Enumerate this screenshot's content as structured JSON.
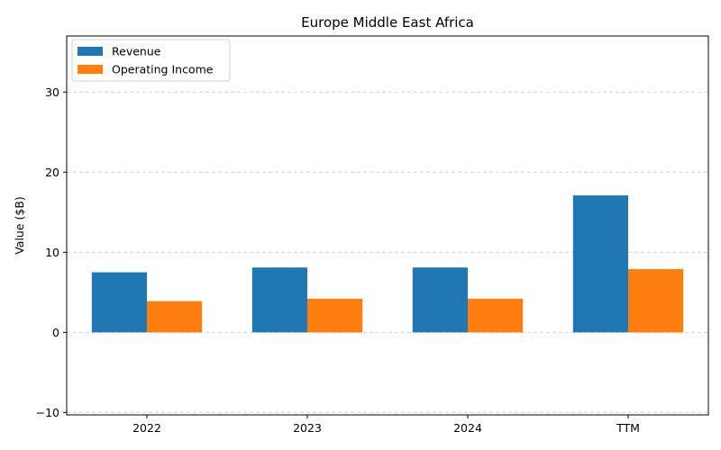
{
  "chart_data": {
    "type": "bar",
    "title": "Europe Middle East Africa",
    "xlabel": "",
    "ylabel": "Value ($B)",
    "categories": [
      "2022",
      "2023",
      "2024",
      "TTM"
    ],
    "series": [
      {
        "name": "Revenue",
        "color": "#1f77b4",
        "values": [
          7.5,
          8.1,
          8.1,
          17.1
        ]
      },
      {
        "name": "Operating Income",
        "color": "#ff7f0e",
        "values": [
          3.9,
          4.2,
          4.2,
          7.9
        ]
      }
    ],
    "ylim": [
      -10.3,
      37
    ],
    "yticks": [
      -10,
      0,
      10,
      20,
      30
    ],
    "grid": "y-dashed",
    "legend_position": "top-left"
  }
}
